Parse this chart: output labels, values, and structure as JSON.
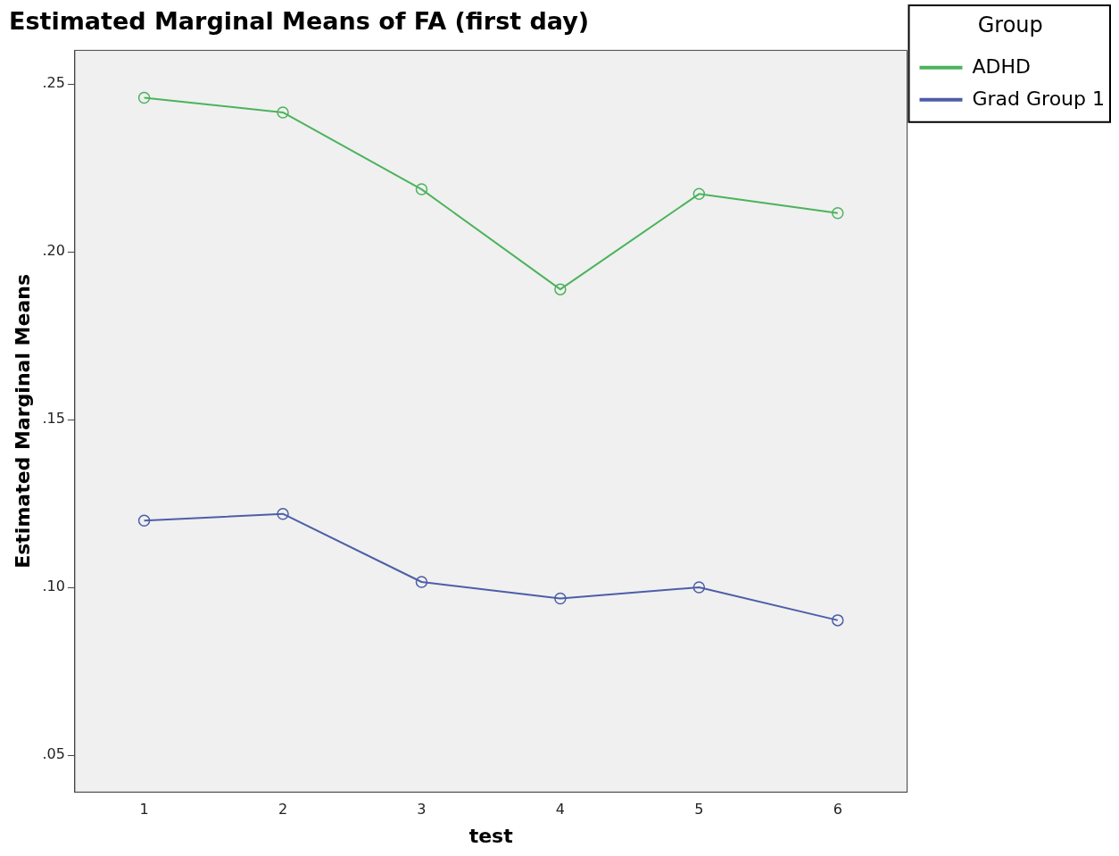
{
  "chart_data": {
    "type": "line",
    "title": "Estimated Marginal Means of FA (first day)",
    "xlabel": "test",
    "ylabel": "Estimated Marginal Means",
    "legend_title": "Group",
    "categories": [
      "1",
      "2",
      "3",
      "4",
      "5",
      "6"
    ],
    "series": [
      {
        "name": "ADHD",
        "color": "#4cb35c",
        "values": [
          0.2459,
          0.2415,
          0.2186,
          0.1888,
          0.2172,
          0.2115
        ]
      },
      {
        "name": "Grad Group 1",
        "color": "#4d5ea8",
        "values": [
          0.1199,
          0.1219,
          0.1016,
          0.0967,
          0.1,
          0.0902
        ]
      }
    ],
    "ylim": [
      0.039,
      0.26
    ],
    "yticks": [
      {
        "value": 0.05,
        "label": ".05"
      },
      {
        "value": 0.1,
        "label": ".10"
      },
      {
        "value": 0.15,
        "label": ".15"
      },
      {
        "value": 0.2,
        "label": ".20"
      },
      {
        "value": 0.25,
        "label": ".25"
      }
    ],
    "grid": false,
    "legend": "top right",
    "marker": "circle",
    "line_style": "solid"
  }
}
